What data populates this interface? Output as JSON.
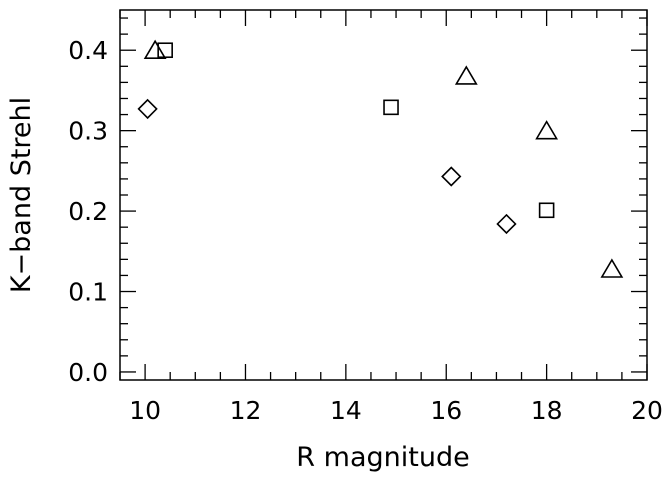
{
  "chart_data": {
    "type": "scatter",
    "xlabel": "R magnitude",
    "ylabel": "K−band Strehl",
    "xlim": [
      9.5,
      20
    ],
    "ylim": [
      -0.01,
      0.45
    ],
    "x_ticks": [
      {
        "value": 10,
        "label": "10"
      },
      {
        "value": 12,
        "label": "12"
      },
      {
        "value": 14,
        "label": "14"
      },
      {
        "value": 16,
        "label": "16"
      },
      {
        "value": 18,
        "label": "18"
      },
      {
        "value": 20,
        "label": "20"
      }
    ],
    "y_ticks": [
      {
        "value": 0.0,
        "label": "0.0"
      },
      {
        "value": 0.1,
        "label": "0.1"
      },
      {
        "value": 0.2,
        "label": "0.2"
      },
      {
        "value": 0.3,
        "label": "0.3"
      },
      {
        "value": 0.4,
        "label": "0.4"
      }
    ],
    "grid": false,
    "marker_color": "#000000",
    "series": [
      {
        "marker": "triangle",
        "points": [
          {
            "x": 10.2,
            "y": 0.4
          },
          {
            "x": 16.4,
            "y": 0.368
          },
          {
            "x": 18.0,
            "y": 0.3
          },
          {
            "x": 19.3,
            "y": 0.128
          }
        ]
      },
      {
        "marker": "square",
        "points": [
          {
            "x": 10.4,
            "y": 0.4
          },
          {
            "x": 14.9,
            "y": 0.329
          },
          {
            "x": 18.0,
            "y": 0.201
          }
        ]
      },
      {
        "marker": "diamond",
        "points": [
          {
            "x": 10.05,
            "y": 0.327
          },
          {
            "x": 16.1,
            "y": 0.243
          },
          {
            "x": 17.2,
            "y": 0.184
          }
        ]
      }
    ]
  }
}
